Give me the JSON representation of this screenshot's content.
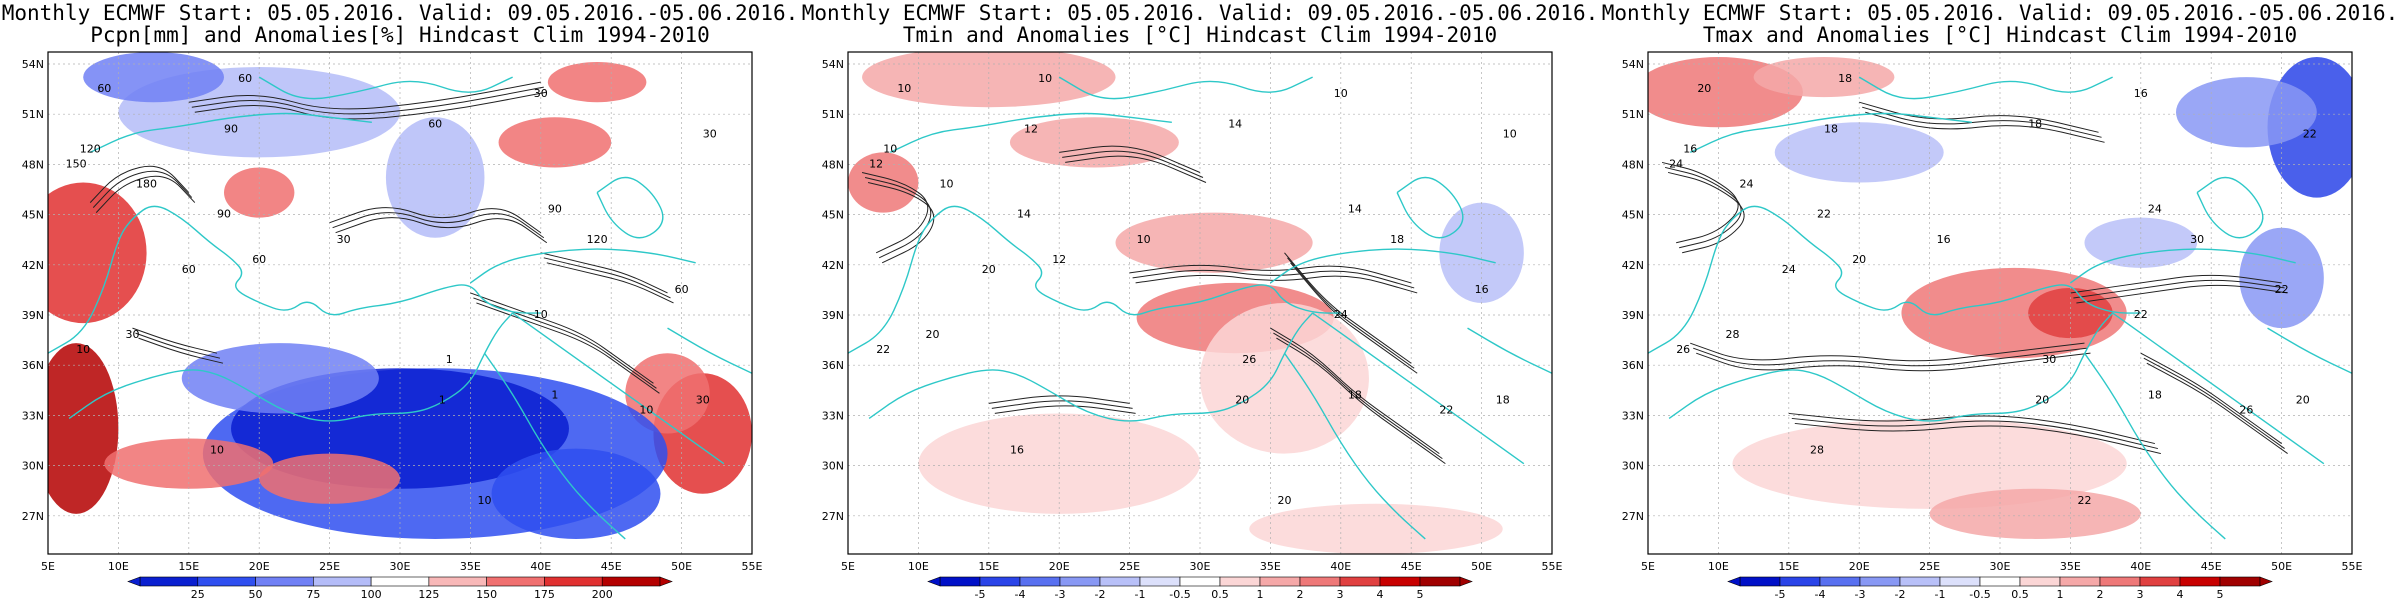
{
  "colors": {
    "coastline": "#2ec8c8",
    "contour": "#222222",
    "frame": "#000000",
    "grid": "#b0b0b0"
  },
  "panels": [
    {
      "title_line1": "Monthly ECMWF Start: 05.05.2016. Valid: 09.05.2016.-05.06.2016.",
      "title_line2": "Pcpn[mm] and Anomalies[%] Hindcast Clim 1994-2010",
      "x_ticks": [
        "5E",
        "10E",
        "15E",
        "20E",
        "25E",
        "30E",
        "35E",
        "40E",
        "45E",
        "50E",
        "55E"
      ],
      "y_ticks": [
        "54N",
        "51N",
        "48N",
        "45N",
        "42N",
        "39N",
        "36N",
        "33N",
        "30N",
        "27N"
      ],
      "colorbar": {
        "labels": [
          "25",
          "50",
          "75",
          "100",
          "125",
          "150",
          "175",
          "200"
        ],
        "colors": [
          "#0a1fd0",
          "#2f4ff0",
          "#7080f5",
          "#b4bcf8",
          "#ffffff",
          "#f8b8b8",
          "#f07070",
          "#e03030",
          "#b40000"
        ]
      },
      "contour_labels": [
        "60",
        "60",
        "90",
        "120",
        "150",
        "180",
        "90",
        "60",
        "30",
        "60",
        "30",
        "30",
        "90",
        "120",
        "60",
        "60",
        "30",
        "10",
        "10",
        "1",
        "1",
        "1",
        "10",
        "10",
        "30",
        "10"
      ]
    },
    {
      "title_line1": "Monthly ECMWF Start: 05.05.2016. Valid: 09.05.2016.-05.06.2016.",
      "title_line2": "Tmin and Anomalies [°C] Hindcast Clim 1994-2010",
      "x_ticks": [
        "5E",
        "10E",
        "15E",
        "20E",
        "25E",
        "30E",
        "35E",
        "40E",
        "45E",
        "50E",
        "55E"
      ],
      "y_ticks": [
        "54N",
        "51N",
        "48N",
        "45N",
        "42N",
        "39N",
        "36N",
        "33N",
        "30N",
        "27N"
      ],
      "colorbar": {
        "labels": [
          "-5",
          "-4",
          "-3",
          "-2",
          "-1",
          "-0.5",
          "0.5",
          "1",
          "2",
          "3",
          "4",
          "5"
        ],
        "colors": [
          "#0010c8",
          "#2a44e8",
          "#5870f0",
          "#8898f4",
          "#b8c0f8",
          "#dce0fb",
          "#ffffff",
          "#fbd6d6",
          "#f5a8a8",
          "#ee7878",
          "#e04040",
          "#c80000",
          "#a00000"
        ]
      },
      "contour_labels": [
        "10",
        "10",
        "12",
        "10",
        "12",
        "10",
        "14",
        "12",
        "10",
        "14",
        "10",
        "10",
        "14",
        "18",
        "16",
        "20",
        "20",
        "22",
        "24",
        "26",
        "18",
        "20",
        "20",
        "22",
        "18",
        "16"
      ]
    },
    {
      "title_line1": "Monthly ECMWF Start: 05.05.2016. Valid: 09.05.2016.-05.06.2016.",
      "title_line2": "Tmax and Anomalies [°C] Hindcast Clim 1994-2010",
      "x_ticks": [
        "5E",
        "10E",
        "15E",
        "20E",
        "25E",
        "30E",
        "35E",
        "40E",
        "45E",
        "50E",
        "55E"
      ],
      "y_ticks": [
        "54N",
        "51N",
        "48N",
        "45N",
        "42N",
        "39N",
        "36N",
        "33N",
        "30N",
        "27N"
      ],
      "colorbar": {
        "labels": [
          "-5",
          "-4",
          "-3",
          "-2",
          "-1",
          "-0.5",
          "0.5",
          "1",
          "2",
          "3",
          "4",
          "5"
        ],
        "colors": [
          "#0010c8",
          "#2a44e8",
          "#5870f0",
          "#8898f4",
          "#b8c0f8",
          "#dce0fb",
          "#ffffff",
          "#fbd6d6",
          "#f5a8a8",
          "#ee7878",
          "#e04040",
          "#c80000",
          "#a00000"
        ]
      },
      "contour_labels": [
        "20",
        "18",
        "18",
        "16",
        "24",
        "24",
        "22",
        "20",
        "16",
        "18",
        "16",
        "22",
        "24",
        "30",
        "22",
        "24",
        "28",
        "26",
        "22",
        "30",
        "18",
        "20",
        "22",
        "26",
        "20",
        "28"
      ]
    }
  ]
}
